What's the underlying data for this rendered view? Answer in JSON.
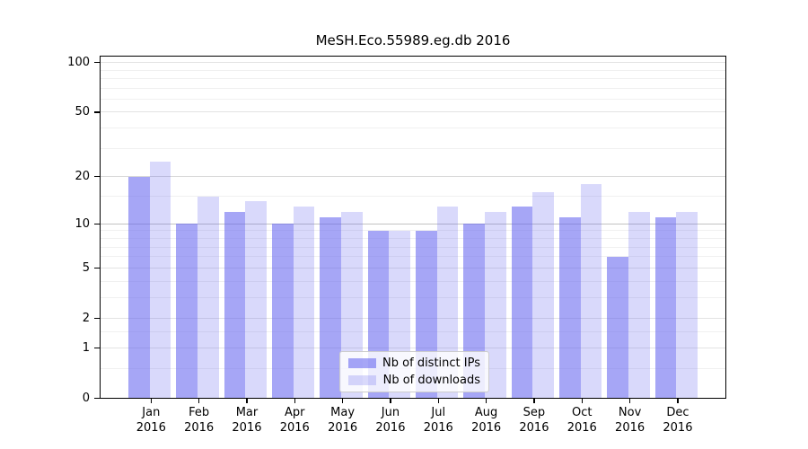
{
  "title": "MeSH.Eco.55989.eg.db 2016",
  "chart_data": {
    "type": "bar",
    "categories": [
      "Jan",
      "Feb",
      "Mar",
      "Apr",
      "May",
      "Jun",
      "Jul",
      "Aug",
      "Sep",
      "Oct",
      "Nov",
      "Dec"
    ],
    "category_year": "2016",
    "series": [
      {
        "name": "Nb of distinct IPs",
        "values": [
          20,
          10,
          12,
          10,
          11,
          9,
          9,
          10,
          13,
          11,
          6,
          11
        ],
        "color": "rgba(98,98,240,0.57)"
      },
      {
        "name": "Nb of downloads",
        "values": [
          25,
          15,
          14,
          13,
          12,
          9,
          13,
          12,
          16,
          18,
          12,
          12
        ],
        "color": "rgba(98,98,240,0.24)"
      }
    ],
    "xlabel": "",
    "ylabel": "",
    "y_axis": {
      "scale": "log1p",
      "tick_values": [
        0,
        1,
        2,
        5,
        10,
        20,
        50,
        100
      ],
      "range": [
        0,
        110
      ]
    },
    "grid": {
      "visible": true,
      "major_values": [
        1,
        2,
        5,
        50,
        100
      ],
      "minor_values": [
        0.5,
        1.5,
        3,
        4,
        6,
        7,
        8,
        9,
        15,
        30,
        40,
        60,
        70,
        80,
        90
      ],
      "emphasis": [
        {
          "value": 10,
          "color": "#c2c2c2"
        },
        {
          "value": 20,
          "color": "#d8d8d8"
        }
      ],
      "major_color": "#e3e3e3",
      "minor_color": "#f0f0f0"
    },
    "legend_position": "lower center"
  },
  "colors": {
    "background": "#ffffff",
    "axis": "#000000",
    "text": "#000000",
    "bar_distinct_ips": "rgba(98,98,240,0.57)",
    "bar_downloads": "rgba(98,98,240,0.24)"
  }
}
